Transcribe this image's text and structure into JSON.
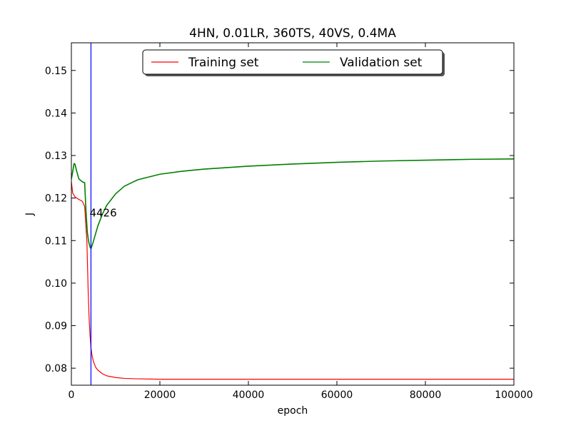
{
  "chart_data": {
    "type": "line",
    "title": "4HN, 0.01LR, 360TS, 40VS, 0.4MA",
    "xlabel": "epoch",
    "ylabel": "J",
    "xlim": [
      0,
      100000
    ],
    "ylim": [
      0.076,
      0.1565
    ],
    "x_ticks": [
      0,
      20000,
      40000,
      60000,
      80000,
      100000
    ],
    "y_ticks": [
      0.08,
      0.09,
      0.1,
      0.11,
      0.12,
      0.13,
      0.14,
      0.15
    ],
    "x_tick_labels": [
      "0",
      "20000",
      "40000",
      "60000",
      "80000",
      "100000"
    ],
    "y_tick_labels": [
      "0.08",
      "0.09",
      "0.10",
      "0.11",
      "0.12",
      "0.13",
      "0.14",
      "0.15"
    ],
    "legend_position": "top-center",
    "grid": false,
    "series": [
      {
        "name": "Training set",
        "color": "#ff0000",
        "x": [
          0,
          300,
          800,
          1500,
          2500,
          3000,
          3500,
          3800,
          4000,
          4200,
          4426,
          4700,
          5000,
          5500,
          6000,
          7000,
          8000,
          10000,
          12000,
          15000,
          20000,
          30000,
          40000,
          60000,
          80000,
          100000
        ],
        "y": [
          0.1238,
          0.1212,
          0.1203,
          0.1198,
          0.1192,
          0.118,
          0.11,
          0.098,
          0.092,
          0.088,
          0.0848,
          0.0828,
          0.0815,
          0.0802,
          0.0795,
          0.0787,
          0.0782,
          0.0778,
          0.0776,
          0.0775,
          0.0774,
          0.0774,
          0.0774,
          0.0774,
          0.0774,
          0.0774
        ]
      },
      {
        "name": "Validation set",
        "color": "#008000",
        "x": [
          0,
          300,
          600,
          800,
          1200,
          1700,
          2500,
          3000,
          3300,
          3600,
          3900,
          4200,
          4426,
          4800,
          5300,
          6000,
          7000,
          8000,
          10000,
          12000,
          15000,
          20000,
          25000,
          30000,
          40000,
          50000,
          60000,
          70000,
          80000,
          90000,
          100000
        ],
        "y": [
          0.1245,
          0.1262,
          0.1281,
          0.128,
          0.1263,
          0.1245,
          0.1238,
          0.1236,
          0.117,
          0.112,
          0.1098,
          0.1085,
          0.1081,
          0.1092,
          0.111,
          0.1135,
          0.1162,
          0.1183,
          0.121,
          0.1228,
          0.1243,
          0.1256,
          0.1263,
          0.1268,
          0.1275,
          0.128,
          0.1284,
          0.1287,
          0.1289,
          0.1291,
          0.1292
        ]
      }
    ],
    "vline": {
      "x": 4426,
      "color": "#0000ff"
    },
    "annotation": {
      "text": "4426",
      "x": 4426,
      "y": 0.1165
    }
  }
}
